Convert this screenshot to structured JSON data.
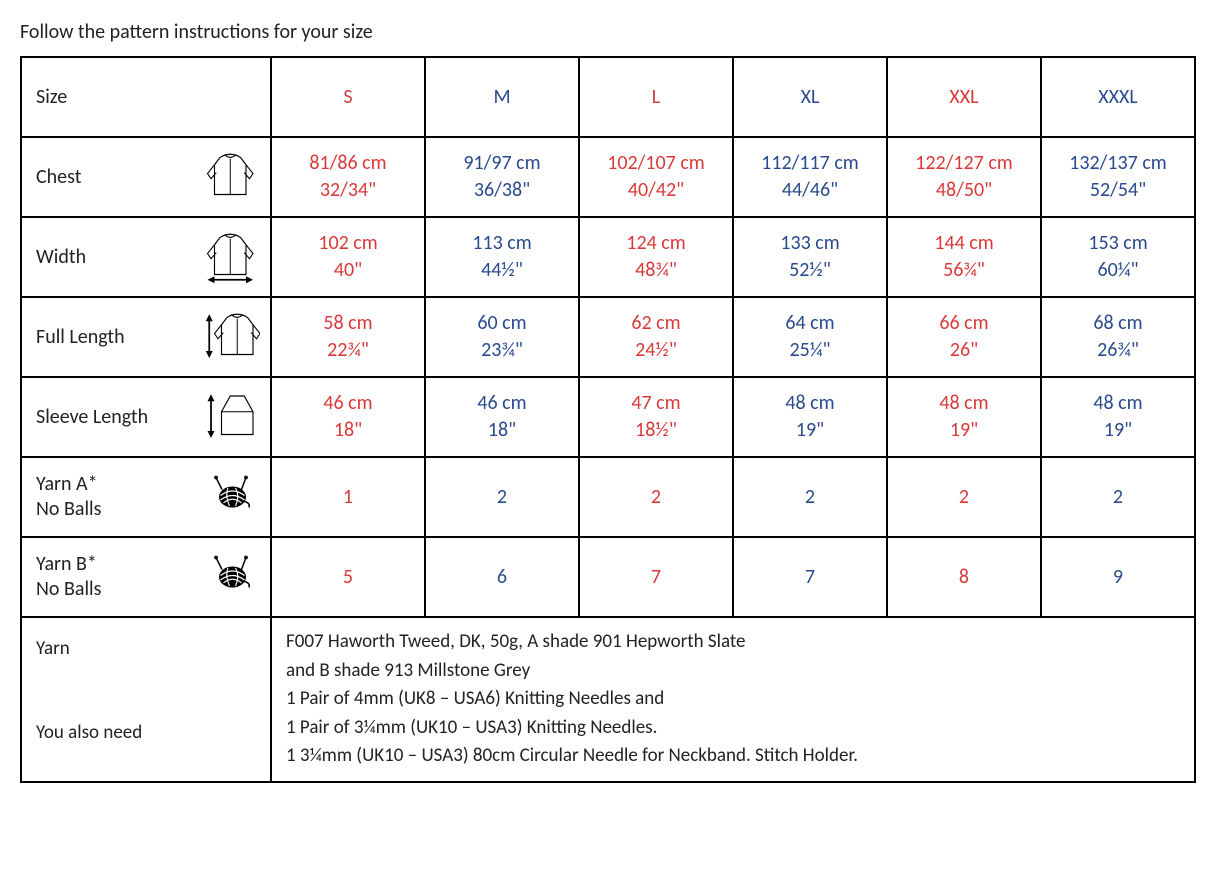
{
  "title": "Follow the pattern instructions for your size",
  "colors": {
    "red": "#d83a3a",
    "blue": "#294a8e",
    "border": "#000000",
    "text": "#222222"
  },
  "header": {
    "label": "Size",
    "sizes": [
      {
        "label": "S",
        "color": "red"
      },
      {
        "label": "M",
        "color": "blue"
      },
      {
        "label": "L",
        "color": "red"
      },
      {
        "label": "XL",
        "color": "blue"
      },
      {
        "label": "XXL",
        "color": "red"
      },
      {
        "label": "XXXL",
        "color": "blue"
      }
    ]
  },
  "rows": [
    {
      "label": "Chest",
      "icon": "garment-plain",
      "cells": [
        {
          "l1": "81/86 cm",
          "l2": "32/34\"",
          "color": "red"
        },
        {
          "l1": "91/97 cm",
          "l2": "36/38\"",
          "color": "blue"
        },
        {
          "l1": "102/107 cm",
          "l2": "40/42\"",
          "color": "red"
        },
        {
          "l1": "112/117 cm",
          "l2": "44/46\"",
          "color": "blue"
        },
        {
          "l1": "122/127 cm",
          "l2": "48/50\"",
          "color": "red"
        },
        {
          "l1": "132/137 cm",
          "l2": "52/54\"",
          "color": "blue"
        }
      ]
    },
    {
      "label": "Width",
      "icon": "garment-width",
      "cells": [
        {
          "l1": "102 cm",
          "l2": "40\"",
          "color": "red"
        },
        {
          "l1": "113 cm",
          "l2": "44½\"",
          "color": "blue"
        },
        {
          "l1": "124 cm",
          "l2": "48¾\"",
          "color": "red"
        },
        {
          "l1": "133 cm",
          "l2": "52½\"",
          "color": "blue"
        },
        {
          "l1": "144 cm",
          "l2": "56¾\"",
          "color": "red"
        },
        {
          "l1": "153 cm",
          "l2": "60¼\"",
          "color": "blue"
        }
      ]
    },
    {
      "label": "Full Length",
      "icon": "garment-length",
      "cells": [
        {
          "l1": "58 cm",
          "l2": "22¾\"",
          "color": "red"
        },
        {
          "l1": "60 cm",
          "l2": "23¾\"",
          "color": "blue"
        },
        {
          "l1": "62 cm",
          "l2": "24½\"",
          "color": "red"
        },
        {
          "l1": "64 cm",
          "l2": "25¼\"",
          "color": "blue"
        },
        {
          "l1": "66 cm",
          "l2": "26\"",
          "color": "red"
        },
        {
          "l1": "68 cm",
          "l2": "26¾\"",
          "color": "blue"
        }
      ]
    },
    {
      "label": "Sleeve Length",
      "icon": "sleeve-length",
      "cells": [
        {
          "l1": "46 cm",
          "l2": "18\"",
          "color": "red"
        },
        {
          "l1": "46 cm",
          "l2": "18\"",
          "color": "blue"
        },
        {
          "l1": "47 cm",
          "l2": "18½\"",
          "color": "red"
        },
        {
          "l1": "48 cm",
          "l2": "19\"",
          "color": "blue"
        },
        {
          "l1": "48 cm",
          "l2": "19\"",
          "color": "red"
        },
        {
          "l1": "48 cm",
          "l2": "19\"",
          "color": "blue"
        }
      ]
    },
    {
      "label": "Yarn A*\nNo Balls",
      "icon": "yarn",
      "cells": [
        {
          "l1": "1",
          "color": "red"
        },
        {
          "l1": "2",
          "color": "blue"
        },
        {
          "l1": "2",
          "color": "red"
        },
        {
          "l1": "2",
          "color": "blue"
        },
        {
          "l1": "2",
          "color": "red"
        },
        {
          "l1": "2",
          "color": "blue"
        }
      ]
    },
    {
      "label": "Yarn B*\nNo Balls",
      "icon": "yarn",
      "cells": [
        {
          "l1": "5",
          "color": "red"
        },
        {
          "l1": "6",
          "color": "blue"
        },
        {
          "l1": "7",
          "color": "red"
        },
        {
          "l1": "7",
          "color": "blue"
        },
        {
          "l1": "8",
          "color": "red"
        },
        {
          "l1": "9",
          "color": "blue"
        }
      ]
    }
  ],
  "bottom": {
    "label": "Yarn\n\nYou also need",
    "text": "F007 Haworth Tweed, DK, 50g, A shade 901 Hepworth Slate\nand B shade 913 Millstone Grey\n1 Pair of 4mm (UK8 – USA6) Knitting Needles and\n1 Pair of 3¼mm (UK10 – USA3) Knitting Needles.\n1 3¼mm (UK10 – USA3) 80cm Circular Needle for Neckband. Stitch Holder."
  }
}
